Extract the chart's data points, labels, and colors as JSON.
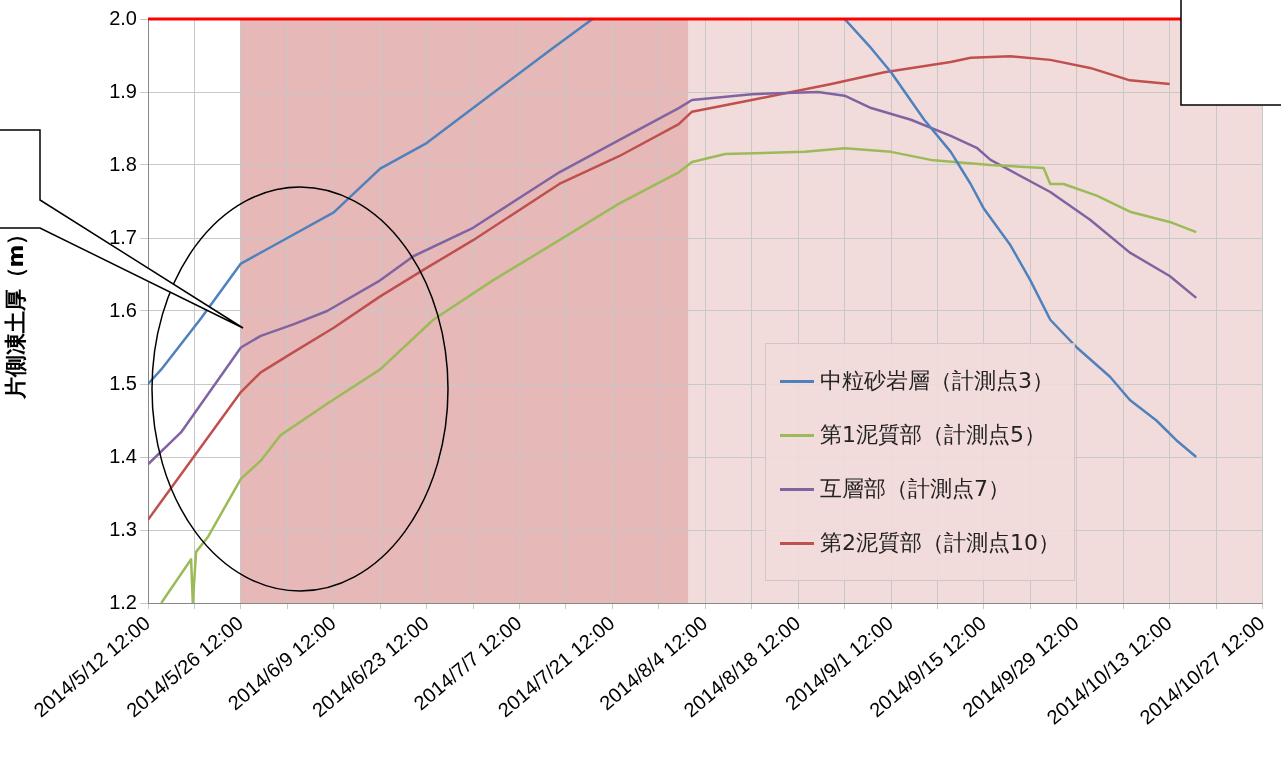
{
  "chart_data": {
    "type": "line",
    "ylabel": "片側凍土厚（m）",
    "xlim": [
      "2014-05-12T12:00",
      "2014-10-27T12:00"
    ],
    "xticks": [
      {
        "value": "2014-05-12T12:00",
        "label": "2014/5/12 12:00"
      },
      {
        "value": "2014-05-19T12:00",
        "label": null
      },
      {
        "value": "2014-05-26T12:00",
        "label": "2014/5/26 12:00"
      },
      {
        "value": "2014-06-02T12:00",
        "label": null
      },
      {
        "value": "2014-06-09T12:00",
        "label": "2014/6/9 12:00"
      },
      {
        "value": "2014-06-16T12:00",
        "label": null
      },
      {
        "value": "2014-06-23T12:00",
        "label": "2014/6/23 12:00"
      },
      {
        "value": "2014-06-30T12:00",
        "label": null
      },
      {
        "value": "2014-07-07T12:00",
        "label": "2014/7/7 12:00"
      },
      {
        "value": "2014-07-14T12:00",
        "label": null
      },
      {
        "value": "2014-07-21T12:00",
        "label": "2014/7/21 12:00"
      },
      {
        "value": "2014-07-28T12:00",
        "label": null
      },
      {
        "value": "2014-08-04T12:00",
        "label": "2014/8/4 12:00"
      },
      {
        "value": "2014-08-11T12:00",
        "label": null
      },
      {
        "value": "2014-08-18T12:00",
        "label": "2014/8/18 12:00"
      },
      {
        "value": "2014-08-25T12:00",
        "label": null
      },
      {
        "value": "2014-09-01T12:00",
        "label": "2014/9/1 12:00"
      },
      {
        "value": "2014-09-08T12:00",
        "label": null
      },
      {
        "value": "2014-09-15T12:00",
        "label": "2014/9/15 12:00"
      },
      {
        "value": "2014-09-22T12:00",
        "label": null
      },
      {
        "value": "2014-09-29T12:00",
        "label": "2014/9/29 12:00"
      },
      {
        "value": "2014-10-06T12:00",
        "label": null
      },
      {
        "value": "2014-10-13T12:00",
        "label": "2014/10/13 12:00"
      },
      {
        "value": "2014-10-20T12:00",
        "label": null
      },
      {
        "value": "2014-10-27T12:00",
        "label": "2014/10/27 12:00"
      }
    ],
    "ylim": [
      1.2,
      2.0
    ],
    "yticks": [
      {
        "value": 1.2,
        "label": "1.2"
      },
      {
        "value": 1.3,
        "label": "1.3"
      },
      {
        "value": 1.4,
        "label": "1.4"
      },
      {
        "value": 1.5,
        "label": "1.5"
      },
      {
        "value": 1.6,
        "label": "1.6"
      },
      {
        "value": 1.7,
        "label": "1.7"
      },
      {
        "value": 1.8,
        "label": "1.8"
      },
      {
        "value": 1.9,
        "label": "1.9"
      },
      {
        "value": 2.0,
        "label": "2.0"
      }
    ],
    "grid": true,
    "legend": "bottom right",
    "marker": "none",
    "line_style": "solid",
    "bands": [
      {
        "axis": "x",
        "from": "2014-05-26T12:00",
        "to": "2014-10-27T12:00",
        "label": null,
        "color": "#f2dcdb"
      },
      {
        "axis": "x",
        "from": "2014-05-26T12:00",
        "to": "2014-08-01T22:00",
        "label": null,
        "color": "#e6b9b8"
      }
    ],
    "ref_lines": [
      {
        "axis": "y",
        "value": 2.0,
        "label": null,
        "color": "#ff0000"
      }
    ],
    "series": [
      {
        "name": "中粒砂岩層（計測点3）",
        "color": "#4f81bd",
        "x": [
          "2014-05-12T12:00",
          "2014-05-14T12:00",
          "2014-05-20T12:00",
          "2014-05-26T12:00",
          "2014-06-02T12:00",
          "2014-06-09T12:00",
          "2014-06-16T12:00",
          "2014-06-23T12:00",
          "2014-06-30T12:00",
          "2014-07-12T12:00",
          "2014-07-18T12:00",
          "2014-07-21T12:00",
          "2014-08-25T12:00",
          "2014-08-29T12:00",
          "2014-09-01T12:00",
          "2014-09-06T12:00",
          "2014-09-10T12:00",
          "2014-09-13T12:00",
          "2014-09-15T12:00",
          "2014-09-19T12:00",
          "2014-09-22T12:00",
          "2014-09-25T12:00",
          "2014-09-29T12:00",
          "2014-10-04T12:00",
          "2014-10-07T12:00",
          "2014-10-11T12:00",
          "2014-10-14T12:00",
          "2014-10-17T12:00"
        ],
        "values": [
          1.5,
          1.52,
          1.59,
          1.665,
          1.7,
          1.735,
          1.795,
          1.83,
          1.878,
          1.96,
          2.0,
          null,
          2.0,
          1.96,
          1.927,
          1.862,
          1.818,
          1.774,
          1.74,
          1.69,
          1.642,
          1.588,
          1.55,
          1.51,
          1.478,
          1.45,
          1.423,
          1.4
        ]
      },
      {
        "name": "第1泥質部（計測点5）",
        "color": "#9bbb59",
        "x": [
          "2014-05-14T12:00",
          "2014-05-19T00:00",
          "2014-05-19T06:00",
          "2014-05-19T18:00",
          "2014-05-21T12:00",
          "2014-05-26T12:00",
          "2014-05-29T12:00",
          "2014-06-01T12:00",
          "2014-06-08T12:00",
          "2014-06-16T12:00",
          "2014-06-24T12:00",
          "2014-07-03T12:00",
          "2014-07-13T12:00",
          "2014-07-22T12:00",
          "2014-07-31T12:00",
          "2014-08-02T12:00",
          "2014-08-07T12:00",
          "2014-08-19T12:00",
          "2014-08-25T12:00",
          "2014-09-01T12:00",
          "2014-09-07T12:00",
          "2014-09-16T12:00",
          "2014-09-24T12:00",
          "2014-09-25T12:00",
          "2014-09-27T12:00",
          "2014-10-02T12:00",
          "2014-10-07T12:00",
          "2014-10-13T12:00",
          "2014-10-17T12:00"
        ],
        "values": [
          1.2,
          1.26,
          1.2,
          1.27,
          1.29,
          1.37,
          1.395,
          1.43,
          1.473,
          1.52,
          1.588,
          1.642,
          1.697,
          1.747,
          1.79,
          1.804,
          1.815,
          1.818,
          1.823,
          1.818,
          1.807,
          1.8,
          1.796,
          1.774,
          1.774,
          1.758,
          1.736,
          1.722,
          1.708
        ]
      },
      {
        "name": "互層部（計測点7）",
        "color": "#8064a2",
        "x": [
          "2014-05-12T12:00",
          "2014-05-17T12:00",
          "2014-05-26T12:00",
          "2014-05-29T12:00",
          "2014-06-03T12:00",
          "2014-06-08T12:00",
          "2014-06-16T12:00",
          "2014-06-21T12:00",
          "2014-06-30T12:00",
          "2014-07-13T12:00",
          "2014-07-22T12:00",
          "2014-07-31T12:00",
          "2014-08-02T12:00",
          "2014-08-11T12:00",
          "2014-08-21T12:00",
          "2014-08-25T12:00",
          "2014-08-29T12:00",
          "2014-09-04T12:00",
          "2014-09-10T12:00",
          "2014-09-14T12:00",
          "2014-09-16T12:00",
          "2014-09-25T12:00",
          "2014-10-01T12:00",
          "2014-10-07T12:00",
          "2014-10-13T12:00",
          "2014-10-17T12:00"
        ],
        "values": [
          1.39,
          1.434,
          1.55,
          1.566,
          1.582,
          1.6,
          1.642,
          1.675,
          1.714,
          1.79,
          1.834,
          1.878,
          1.889,
          1.897,
          1.9,
          1.895,
          1.878,
          1.862,
          1.84,
          1.823,
          1.807,
          1.763,
          1.725,
          1.68,
          1.648,
          1.618
        ]
      },
      {
        "name": "第2泥質部（計測点10）",
        "color": "#c0504d",
        "x": [
          "2014-05-12T12:00",
          "2014-05-26T12:00",
          "2014-05-29T12:00",
          "2014-06-03T12:00",
          "2014-06-09T12:00",
          "2014-06-16T12:00",
          "2014-06-23T12:00",
          "2014-06-30T12:00",
          "2014-07-13T12:00",
          "2014-07-22T12:00",
          "2014-07-31T12:00",
          "2014-08-02T12:00",
          "2014-08-11T12:00",
          "2014-08-17T12:00",
          "2014-08-23T12:00",
          "2014-08-31T12:00",
          "2014-09-10T12:00",
          "2014-09-13T12:00",
          "2014-09-19T12:00",
          "2014-09-25T12:00",
          "2014-10-01T12:00",
          "2014-10-07T12:00",
          "2014-10-13T12:00"
        ],
        "values": [
          1.314,
          1.489,
          1.516,
          1.544,
          1.577,
          1.62,
          1.659,
          1.697,
          1.774,
          1.812,
          1.856,
          1.873,
          1.889,
          1.9,
          1.911,
          1.927,
          1.941,
          1.947,
          1.949,
          1.944,
          1.933,
          1.916,
          1.911
        ]
      }
    ]
  }
}
